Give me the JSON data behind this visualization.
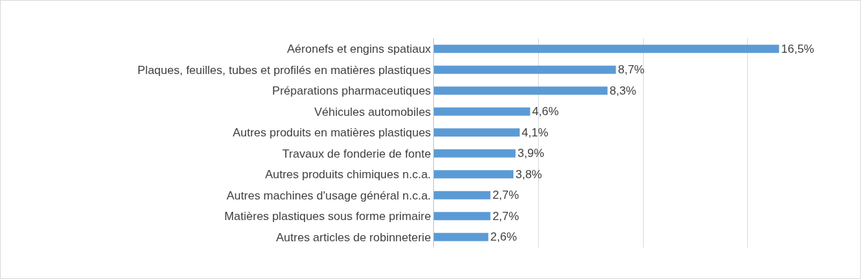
{
  "chart_data": {
    "type": "bar",
    "orientation": "horizontal",
    "categories": [
      "Aéronefs et engins spatiaux",
      "Plaques, feuilles, tubes et profilés en matières plastiques",
      "Préparations pharmaceutiques",
      "Véhicules automobiles",
      "Autres produits en matières plastiques",
      "Travaux de fonderie de fonte",
      "Autres produits chimiques n.c.a.",
      "Autres machines d'usage général n.c.a.",
      "Matières plastiques sous forme primaire",
      "Autres articles de robinneterie"
    ],
    "values": [
      16.5,
      8.7,
      8.3,
      4.6,
      4.1,
      3.9,
      3.8,
      2.7,
      2.7,
      2.6
    ],
    "value_labels": [
      "16,5%",
      "8,7%",
      "8,3%",
      "4,6%",
      "4,1%",
      "3,9%",
      "3,8%",
      "2,7%",
      "2,7%",
      "2,6%"
    ],
    "color": "#5b9bd5",
    "tick_labels": "y",
    "grid": "x"
  }
}
